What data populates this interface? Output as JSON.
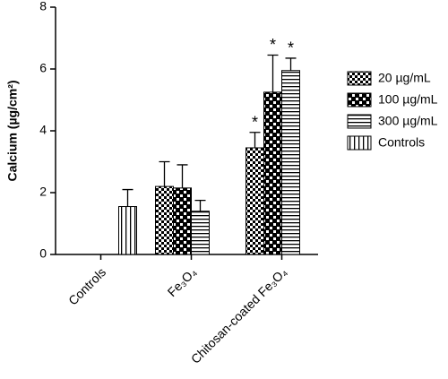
{
  "chart_data": {
    "type": "bar",
    "y_label": "Calcium (µg/cm²)",
    "categories": [
      "Controls",
      "Fe₃O₄",
      "Chitosan-coated Fe₃O₄"
    ],
    "series": [
      {
        "name": "20 µg/mL",
        "pattern": "fine-checker",
        "values": [
          null,
          2.2,
          3.45
        ],
        "errors": [
          null,
          0.8,
          0.5
        ],
        "significance": [
          null,
          null,
          "*"
        ]
      },
      {
        "name": "100 µg/mL",
        "pattern": "coarse-checker",
        "values": [
          null,
          2.15,
          5.25
        ],
        "errors": [
          null,
          0.75,
          1.2
        ],
        "significance": [
          null,
          null,
          "*"
        ]
      },
      {
        "name": "300 µg/mL",
        "pattern": "horizontal-stripes",
        "values": [
          null,
          1.4,
          5.95
        ],
        "errors": [
          null,
          0.35,
          0.4
        ],
        "significance": [
          null,
          null,
          "*"
        ]
      },
      {
        "name": "Controls",
        "pattern": "vertical-stripes",
        "values": [
          1.55,
          null,
          null
        ],
        "errors": [
          0.55,
          null,
          null
        ],
        "significance": [
          null,
          null,
          null
        ]
      }
    ],
    "ylim": [
      0,
      8
    ],
    "yticks": [
      0,
      2,
      4,
      6,
      8
    ],
    "legend": "right"
  }
}
